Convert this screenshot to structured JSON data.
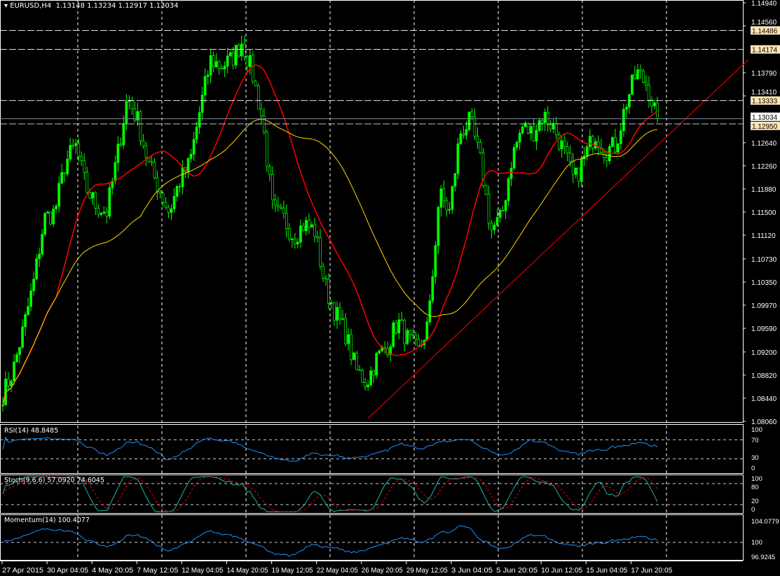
{
  "header": {
    "symbol": "EURUSD,H4",
    "open": "1.13148",
    "high": "1.13234",
    "low": "1.12917",
    "close": "1.13034"
  },
  "colors": {
    "background": "#000000",
    "candle": "#00ff00",
    "ma_fast": "#ff0000",
    "ma_slow": "#ffd700",
    "trendline": "#ff0000",
    "rsi": "#1e90ff",
    "stoch_main": "#20b2aa",
    "stoch_signal": "#ff0000",
    "momentum": "#1e90ff",
    "level_label_bg": "#ffe4b5"
  },
  "chart_data": {
    "type": "candlestick",
    "title": "EURUSD,H4",
    "ylim": [
      1.0806,
      1.1494
    ],
    "y_ticks": [
      "1.14940",
      "1.14560",
      "1.13790",
      "1.13410",
      "1.12640",
      "1.12260",
      "1.11880",
      "1.11500",
      "1.11120",
      "1.10730",
      "1.10350",
      "1.09970",
      "1.09590",
      "1.09200",
      "1.08820",
      "1.08440",
      "1.08060"
    ],
    "x_ticks": [
      "27 Apr 2015",
      "30 Apr 04:05",
      "4 May 20:05",
      "7 May 12:05",
      "12 May 04:05",
      "14 May 20:05",
      "19 May 12:05",
      "22 May 04:05",
      "26 May 20:05",
      "29 May 12:05",
      "3 Jun 04:05",
      "5 Jun 20:05",
      "10 Jun 12:05",
      "15 Jun 04:05",
      "17 Jun 20:05"
    ],
    "approx_closes": [
      1.085,
      1.089,
      1.096,
      1.1037,
      1.114,
      1.115,
      1.123,
      1.126,
      1.119,
      1.116,
      1.115,
      1.124,
      1.134,
      1.13,
      1.123,
      1.119,
      1.115,
      1.12,
      1.123,
      1.132,
      1.14,
      1.139,
      1.14,
      1.143,
      1.138,
      1.13,
      1.115,
      1.114,
      1.111,
      1.113,
      1.112,
      1.103,
      1.0985,
      1.095,
      1.089,
      1.087,
      1.091,
      1.093,
      1.097,
      1.094,
      1.092,
      1.097,
      1.118,
      1.115,
      1.128,
      1.13,
      1.123,
      1.112,
      1.114,
      1.124,
      1.129,
      1.128,
      1.131,
      1.129,
      1.125,
      1.12,
      1.124,
      1.128,
      1.125,
      1.126,
      1.133,
      1.138,
      1.136,
      1.13034
    ],
    "horizontal_levels": [
      {
        "value": "1.14486",
        "style": "dashed"
      },
      {
        "value": "1.14174",
        "style": "dashed"
      },
      {
        "value": "1.13333",
        "style": "dashed"
      },
      {
        "value": "1.12950",
        "style": "dashed"
      }
    ],
    "current_price": "1.13034",
    "indicators": [
      "moving average (red)",
      "moving average (yellow)",
      "trendline"
    ]
  },
  "panels": {
    "rsi": {
      "label": "RSI(14) 48.8485",
      "ticks": [
        "100",
        "70",
        "30",
        "0"
      ]
    },
    "stoch": {
      "label": "Stoch(9,6,6) 57.0920 74.6045",
      "ticks": [
        "100",
        "80",
        "20",
        "0"
      ]
    },
    "momentum": {
      "label": "Momentum(14) 100.4077",
      "ticks": [
        "104.0779",
        "100",
        "96.9245"
      ]
    }
  }
}
